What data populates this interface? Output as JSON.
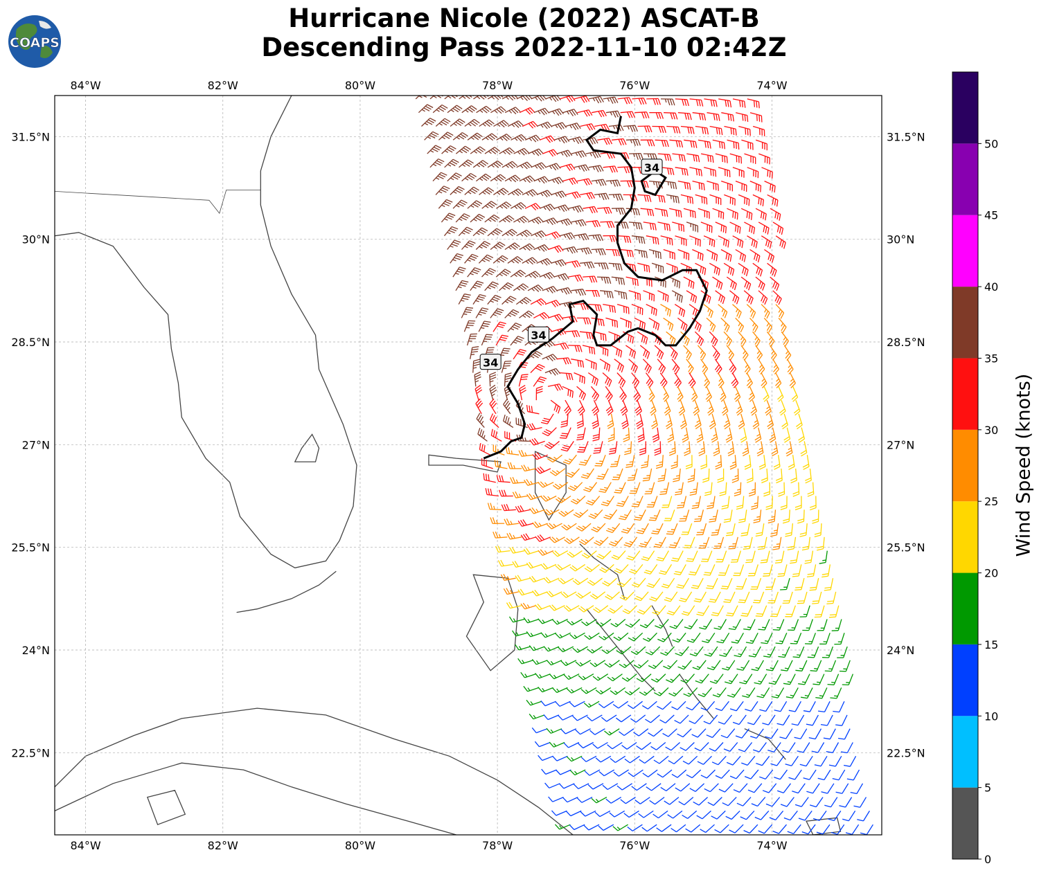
{
  "header": {
    "title_line1": "Hurricane Nicole (2022) ASCAT-B",
    "title_line2": "Descending Pass 2022-11-10 02:42Z",
    "logo_text": "COAPS"
  },
  "map": {
    "lon_range": [
      -84.45,
      -72.4
    ],
    "lat_range": [
      21.3,
      32.1
    ],
    "lon_ticks": [
      {
        "value": -84,
        "label": "84°W"
      },
      {
        "value": -82,
        "label": "82°W"
      },
      {
        "value": -80,
        "label": "80°W"
      },
      {
        "value": -78,
        "label": "78°W"
      },
      {
        "value": -76,
        "label": "76°W"
      },
      {
        "value": -74,
        "label": "74°W"
      }
    ],
    "lat_ticks": [
      {
        "value": 31.5,
        "label": "31.5°N"
      },
      {
        "value": 30,
        "label": "30°N"
      },
      {
        "value": 28.5,
        "label": "28.5°N"
      },
      {
        "value": 27,
        "label": "27°N"
      },
      {
        "value": 25.5,
        "label": "25.5°N"
      },
      {
        "value": 24,
        "label": "24°N"
      },
      {
        "value": 22.5,
        "label": "22.5°N"
      }
    ],
    "gridlines": true,
    "contour_label": "34",
    "contour_34kt": [
      [
        -76.2,
        31.8
      ],
      [
        -76.25,
        31.55
      ],
      [
        -76.5,
        31.6
      ],
      [
        -76.7,
        31.45
      ],
      [
        -76.6,
        31.3
      ],
      [
        -76.2,
        31.25
      ],
      [
        -76.05,
        31.05
      ],
      [
        -76.0,
        30.75
      ],
      [
        -76.05,
        30.45
      ],
      [
        -76.25,
        30.2
      ],
      [
        -76.25,
        29.95
      ],
      [
        -76.15,
        29.65
      ],
      [
        -75.95,
        29.45
      ],
      [
        -75.6,
        29.4
      ],
      [
        -75.3,
        29.55
      ],
      [
        -75.1,
        29.55
      ],
      [
        -74.95,
        29.25
      ],
      [
        -75.05,
        28.95
      ],
      [
        -75.2,
        28.7
      ],
      [
        -75.4,
        28.45
      ],
      [
        -75.55,
        28.45
      ],
      [
        -75.7,
        28.6
      ],
      [
        -75.95,
        28.7
      ],
      [
        -76.1,
        28.65
      ],
      [
        -76.35,
        28.45
      ],
      [
        -76.55,
        28.45
      ],
      [
        -76.6,
        28.6
      ],
      [
        -76.55,
        28.9
      ],
      [
        -76.75,
        29.1
      ],
      [
        -76.95,
        29.05
      ],
      [
        -76.9,
        28.8
      ],
      [
        -77.2,
        28.55
      ],
      [
        -77.5,
        28.35
      ],
      [
        -77.7,
        28.1
      ],
      [
        -77.85,
        27.85
      ],
      [
        -77.7,
        27.6
      ],
      [
        -77.6,
        27.3
      ],
      [
        -77.65,
        27.1
      ],
      [
        -77.8,
        27.05
      ],
      [
        -77.95,
        26.9
      ],
      [
        -78.2,
        26.8
      ]
    ],
    "contour_34kt_small": [
      [
        -75.9,
        30.85
      ],
      [
        -75.85,
        30.7
      ],
      [
        -75.7,
        30.65
      ],
      [
        -75.55,
        30.9
      ],
      [
        -75.7,
        31.0
      ]
    ],
    "contour_label_positions": [
      [
        -75.75,
        31.05
      ],
      [
        -77.4,
        28.6
      ],
      [
        -78.1,
        28.2
      ]
    ],
    "swath": {
      "west_edge": [
        [
          -79.2,
          32.1
        ],
        [
          -77.2,
          22.5
        ]
      ],
      "east_edge": [
        [
          -74.3,
          32.1
        ],
        [
          -72.4,
          21.3
        ]
      ]
    },
    "wind_speed_bands": [
      {
        "lat_min": 29.2,
        "lat_max": 32.1,
        "west": 38,
        "east": 32
      },
      {
        "lat_min": 28.0,
        "lat_max": 29.2,
        "west": 37,
        "east": 27
      },
      {
        "lat_min": 27.0,
        "lat_max": 28.0,
        "west": 36,
        "east": 24
      },
      {
        "lat_min": 25.5,
        "lat_max": 27.0,
        "west": 30,
        "east": 23
      },
      {
        "lat_min": 24.5,
        "lat_max": 25.5,
        "west": 24,
        "east": 21
      },
      {
        "lat_min": 23.3,
        "lat_max": 24.5,
        "west": 17,
        "east": 18
      },
      {
        "lat_min": 21.3,
        "lat_max": 23.3,
        "west": 14,
        "east": 12
      }
    ]
  },
  "colorbar": {
    "label": "Wind Speed (knots)",
    "ticks": [
      "0",
      "5",
      "10",
      "15",
      "20",
      "25",
      "30",
      "35",
      "40",
      "45",
      "50"
    ],
    "bins": [
      {
        "min": 0,
        "max": 5,
        "color": "#555555"
      },
      {
        "min": 5,
        "max": 10,
        "color": "#00bfff"
      },
      {
        "min": 10,
        "max": 15,
        "color": "#0040ff"
      },
      {
        "min": 15,
        "max": 20,
        "color": "#009900"
      },
      {
        "min": 20,
        "max": 25,
        "color": "#ffd700"
      },
      {
        "min": 25,
        "max": 30,
        "color": "#ff8c00"
      },
      {
        "min": 30,
        "max": 35,
        "color": "#ff1010"
      },
      {
        "min": 35,
        "max": 40,
        "color": "#7f3a28"
      },
      {
        "min": 40,
        "max": 45,
        "color": "#ff00ff"
      },
      {
        "min": 45,
        "max": 50,
        "color": "#8800b0"
      },
      {
        "min": 50,
        "max": 55,
        "color": "#2a0060"
      }
    ]
  },
  "colors": {
    "coastline": "#444444",
    "grid": "#aaaaaa",
    "contour": "#000000"
  }
}
